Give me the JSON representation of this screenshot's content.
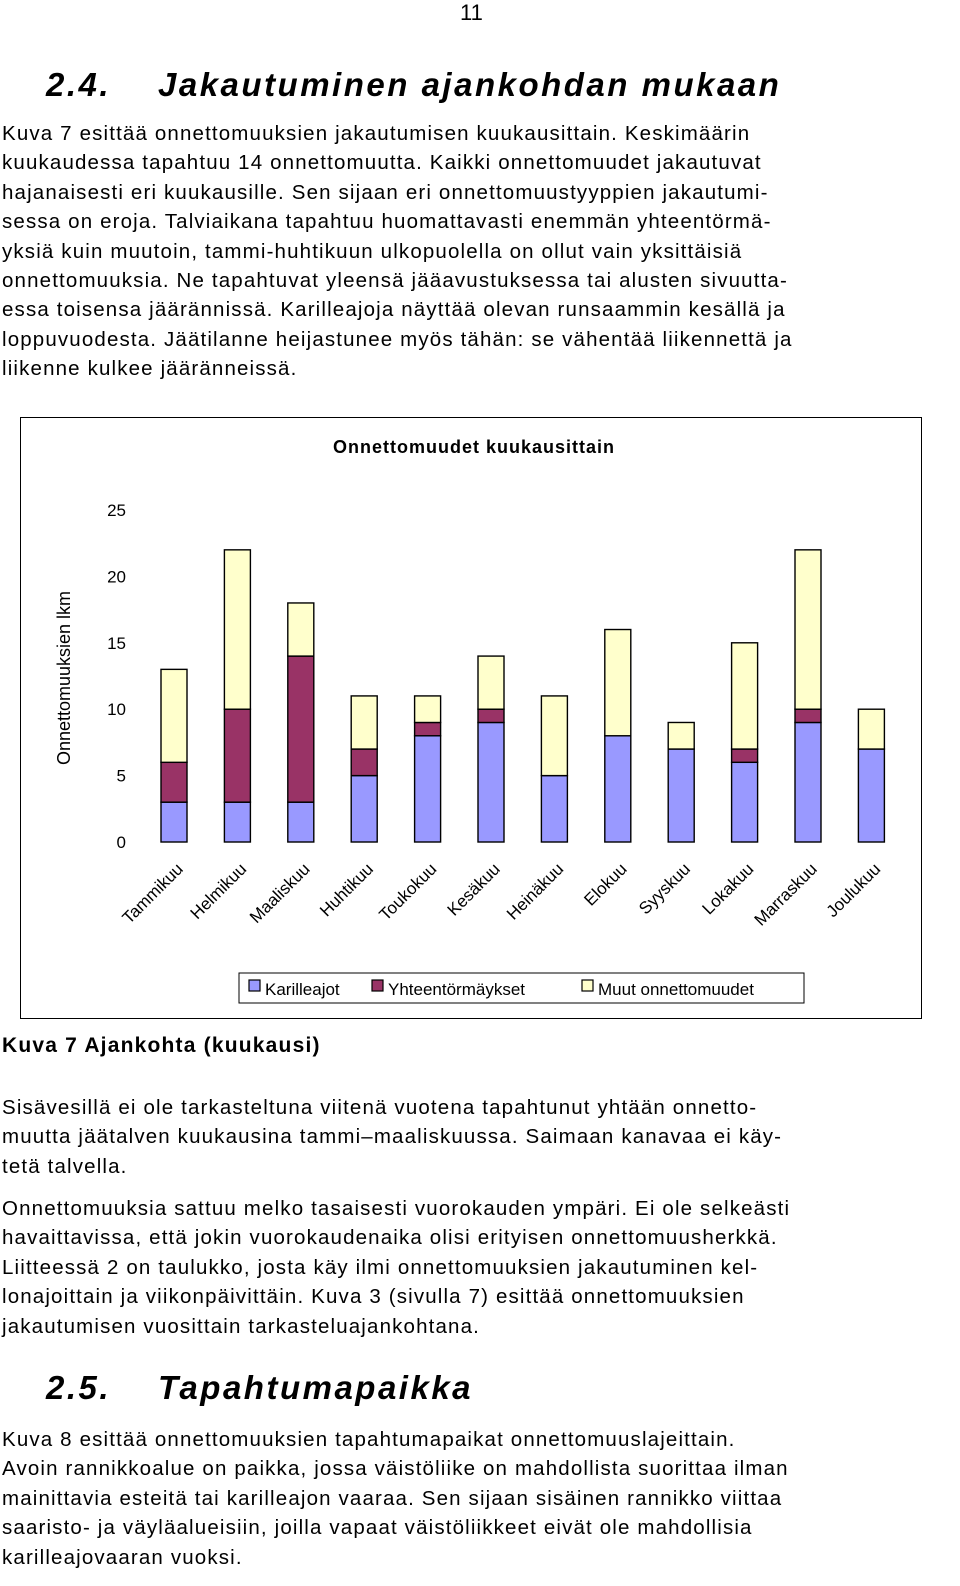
{
  "page_number": "11",
  "section_24": {
    "number": "2.4.",
    "title": "Jakautuminen ajankohdan mukaan"
  },
  "para1_lines": [
    "Kuva 7 esittää onnettomuuksien jakautumisen kuukausittain. Keskimäärin",
    "kuukaudessa tapahtuu 14 onnettomuutta. Kaikki onnettomuudet jakautuvat",
    "hajanaisesti eri kuukausille. Sen sijaan eri onnettomuustyyppien jakautumi-",
    "sessa on eroja. Talviaikana tapahtuu huomattavasti enemmän yhteentörmä-",
    "yksiä kuin muutoin, tammi-huhtikuun ulkopuolella on ollut vain yksittäisiä",
    "onnettomuuksia. Ne tapahtuvat yleensä jääavustuksessa tai alusten sivuutta-",
    "essa toisensa jäärännissä. Karilleajoja näyttää olevan runsaammin kesällä ja",
    "loppuvuodesta. Jäätilanne heijastunee myös tähän: se vähentää liikennettä ja",
    "liikenne kulkee jääränneissä."
  ],
  "chart_data": {
    "type": "bar",
    "stacked": true,
    "title": "Onnettomuudet kuukausittain",
    "xlabel": "",
    "ylabel": "Onnettomuuksien lkm",
    "ylim": [
      0,
      25
    ],
    "yticks": [
      "0",
      "5",
      "10",
      "15",
      "20",
      "25"
    ],
    "categories": [
      "Tammikuu",
      "Helmikuu",
      "Maaliskuu",
      "Huhtikuu",
      "Toukokuu",
      "Kesäkuu",
      "Heinäkuu",
      "Elokuu",
      "Syyskuu",
      "Lokakuu",
      "Marraskuu",
      "Joulukuu"
    ],
    "series": [
      {
        "name": "Karilleajot",
        "color": "#9999ff",
        "values": [
          3,
          3,
          3,
          5,
          8,
          9,
          5,
          8,
          7,
          6,
          9,
          7
        ]
      },
      {
        "name": "Yhteentörmäykset",
        "color": "#993366",
        "values": [
          3,
          7,
          11,
          2,
          1,
          1,
          0,
          0,
          0,
          1,
          1,
          0
        ]
      },
      {
        "name": "Muut onnettomuudet",
        "color": "#ffffcc",
        "values": [
          7,
          12,
          4,
          4,
          2,
          4,
          6,
          8,
          2,
          8,
          12,
          3
        ]
      }
    ],
    "grid": false,
    "legend": "bottom"
  },
  "figure_caption": "Kuva 7 Ajankohta (kuukausi)",
  "para2_lines": [
    "Sisävesillä ei ole tarkasteltuna viitenä vuotena tapahtunut yhtään onnetto-",
    "muutta jäätalven kuukausina tammi–maaliskuussa. Saimaan kanavaa ei käy-",
    "tetä talvella."
  ],
  "para3_lines": [
    "Onnettomuuksia sattuu melko tasaisesti vuorokauden ympäri. Ei ole selkeästi",
    "havaittavissa, että jokin vuorokaudenaika olisi erityisen onnettomuusherkkä.",
    "Liitteessä 2 on taulukko, josta käy ilmi onnettomuuksien jakautuminen kel-",
    "lonajoittain ja viikonpäivittäin. Kuva 3 (sivulla 7) esittää onnettomuuksien",
    "jakautumisen vuosittain tarkasteluajankohtana."
  ],
  "section_25": {
    "number": "2.5.",
    "title": "Tapahtumapaikka"
  },
  "para4_lines": [
    "Kuva 8 esittää onnettomuuksien tapahtumapaikat onnettomuuslajeittain.",
    "Avoin rannikkoalue on paikka, jossa väistöliike on mahdollista suorittaa ilman",
    "mainittavia esteitä tai karilleajon vaaraa. Sen sijaan sisäinen rannikko viittaa",
    "saaristo- ja väyläalueisiin, joilla vapaat väistöliikkeet eivät ole mahdollisia",
    "karilleajovaaran vuoksi."
  ]
}
